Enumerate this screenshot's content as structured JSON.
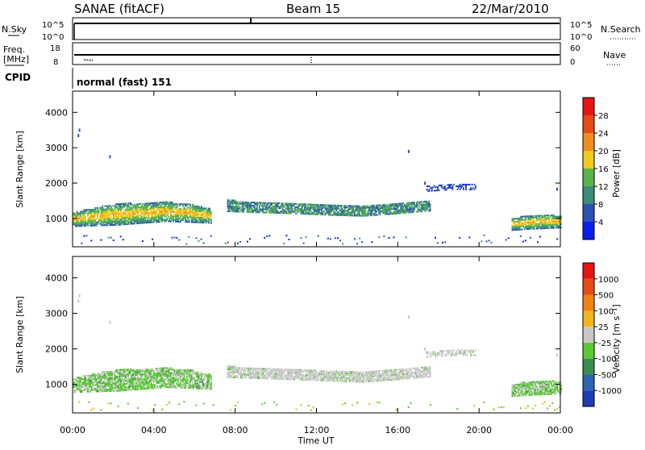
{
  "header": {
    "station": "SANAE (fitACF)",
    "beam": "Beam 15",
    "date": "22/Mar/2010"
  },
  "sky_panel": {
    "left_label": "N.Sky",
    "right_label": "N.Search",
    "left_ticks": [
      "10^5",
      "10^0"
    ],
    "right_ticks": [
      "10^5",
      "10^0"
    ]
  },
  "freq_panel": {
    "left_label_1": "Freq.",
    "left_label_2": "[MHz]",
    "right_label": "Nave",
    "left_ticks": [
      "18",
      "8"
    ],
    "right_ticks": [
      "60",
      "0"
    ]
  },
  "cpid": {
    "label": "CPID",
    "value": "normal (fast) 151"
  },
  "chart_data": [
    {
      "type": "heatmap",
      "name_printed": "",
      "ylabel": "Slant Range [km]",
      "xlabel": "",
      "ylim": [
        200,
        4600
      ],
      "xlim_hours": [
        0,
        24
      ],
      "y_ticks": [
        "1000",
        "2000",
        "3000",
        "4000"
      ],
      "y_tick_values": [
        1000,
        2000,
        3000,
        4000
      ],
      "colorbar": {
        "label": "Power [dB]",
        "ticks": [
          "4",
          "8",
          "12",
          "16",
          "20",
          "24",
          "28"
        ],
        "colors": [
          "#0a1ef0",
          "#2d50b4",
          "#3c8c78",
          "#5ab44b",
          "#f0c81e",
          "#f08c1e",
          "#e64b14",
          "#e61414"
        ]
      }
    },
    {
      "type": "heatmap",
      "name_printed": "",
      "ylabel": "Slant Range [km]",
      "xlabel": "Time UT",
      "ylim": [
        200,
        4600
      ],
      "xlim_hours": [
        0,
        24
      ],
      "y_ticks": [
        "1000",
        "2000",
        "3000",
        "4000"
      ],
      "y_tick_values": [
        1000,
        2000,
        3000,
        4000
      ],
      "x_ticks": [
        "00:00",
        "04:00",
        "08:00",
        "12:00",
        "16:00",
        "20:00",
        "00:00"
      ],
      "x_tick_hours": [
        0,
        4,
        8,
        12,
        16,
        20,
        24
      ],
      "colorbar": {
        "label": "Velocity [m s⁻¹]",
        "ticks": [
          "1000",
          "500",
          "100",
          "25",
          "-25",
          "-100",
          "-500",
          "-1000"
        ],
        "colors": [
          "#1e3cb4",
          "#2d64b4",
          "#3c8c50",
          "#5ac832",
          "#c8c8c8",
          "#f0b41e",
          "#f08214",
          "#e64b14",
          "#e61414"
        ]
      }
    }
  ],
  "echo_regions": [
    {
      "t0": 0.0,
      "t1": 6.8,
      "r_lo": [
        760,
        780,
        800,
        850,
        900,
        880,
        850
      ],
      "r_hi": [
        1150,
        1300,
        1400,
        1420,
        1450,
        1400,
        1250
      ],
      "power": "strong",
      "velocity": "positive"
    },
    {
      "t0": 7.6,
      "t1": 17.6,
      "r_lo": [
        1180,
        1150,
        1120,
        1080,
        1050,
        1120,
        1200
      ],
      "r_hi": [
        1500,
        1450,
        1420,
        1380,
        1350,
        1420,
        1500
      ],
      "power": "medium",
      "velocity": "near-zero"
    },
    {
      "t0": 21.6,
      "t1": 24.0,
      "r_lo": [
        650,
        680,
        700,
        720
      ],
      "r_hi": [
        1000,
        1050,
        1100,
        1050
      ],
      "power": "strong",
      "velocity": "positive"
    },
    {
      "t0": 17.4,
      "t1": 19.8,
      "r_lo": [
        1750,
        1800,
        1800
      ],
      "r_hi": [
        1900,
        1950,
        1980
      ],
      "power": "weak",
      "velocity": "near-zero"
    }
  ]
}
